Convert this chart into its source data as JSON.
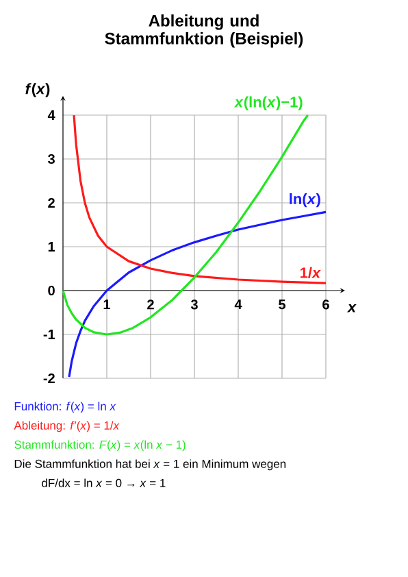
{
  "chart_data": {
    "type": "line",
    "title": "Ableitung und Stammfunktion (Beispiel)",
    "xlabel": "*x*",
    "ylabel": "*f*(*x*)",
    "xlim": [
      0,
      6
    ],
    "ylim": [
      -2,
      4
    ],
    "xticks": [
      1,
      2,
      3,
      4,
      5,
      6
    ],
    "yticks": [
      -2,
      -1,
      0,
      1,
      2,
      3,
      4
    ],
    "grid": true,
    "legend": false,
    "marker": "none",
    "line_style": "solid",
    "series": [
      {
        "name": "ln(*x*)",
        "color": "#1a1aff",
        "x": [
          0.14,
          0.2,
          0.3,
          0.4,
          0.5,
          0.7,
          1,
          1.5,
          2,
          2.5,
          3,
          3.5,
          4,
          4.5,
          5,
          5.5,
          6
        ],
        "values": [
          -1.97,
          -1.61,
          -1.2,
          -0.92,
          -0.69,
          -0.36,
          0,
          0.41,
          0.69,
          0.92,
          1.1,
          1.25,
          1.39,
          1.5,
          1.61,
          1.7,
          1.79
        ]
      },
      {
        "name": "1/*x*",
        "color": "#ff1a1a",
        "x": [
          0.25,
          0.3,
          0.4,
          0.5,
          0.6,
          0.8,
          1,
          1.5,
          2,
          2.5,
          3,
          4,
          5,
          6
        ],
        "values": [
          4,
          3.33,
          2.5,
          2,
          1.67,
          1.25,
          1,
          0.67,
          0.5,
          0.4,
          0.33,
          0.25,
          0.2,
          0.17
        ]
      },
      {
        "name": "*x*(ln(*x*)−1)",
        "color": "#22e622",
        "x": [
          0,
          0.1,
          0.2,
          0.3,
          0.5,
          0.7,
          1,
          1.3,
          1.6,
          2,
          2.5,
          3,
          3.5,
          4,
          4.5,
          5,
          5.5,
          5.59
        ],
        "values": [
          0,
          -0.33,
          -0.52,
          -0.66,
          -0.85,
          -0.95,
          -1,
          -0.96,
          -0.85,
          -0.61,
          -0.21,
          0.3,
          0.88,
          1.55,
          2.27,
          3.05,
          3.88,
          4
        ]
      }
    ],
    "annotations": [
      "Funktion: *f*(*x*) = ln *x*",
      "Ableitung: *f*′(*x*) = 1/*x*",
      "Stammfunktion: *F*(*x*) = *x*(ln *x* − 1)",
      "Die Stammfunktion hat bei *x* = 1 ein Minimum wegen",
      "dF/dx = ln *x* = 0   →   *x* = 1"
    ]
  }
}
